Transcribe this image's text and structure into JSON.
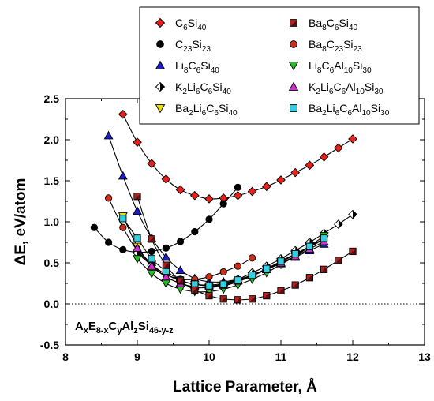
{
  "chart_data": {
    "type": "scatter",
    "xlabel": "Lattice Parameter, Å",
    "ylabel": "ΔE, eV/atom",
    "xlim": [
      8,
      13
    ],
    "ylim": [
      -0.5,
      2.5
    ],
    "xticks": [
      "8",
      "9",
      "10",
      "11",
      "12",
      "13"
    ],
    "yticks": [
      "-0.5",
      "0.0",
      "0.5",
      "1.0",
      "1.5",
      "2.0",
      "2.5"
    ],
    "grid": false,
    "legend_position": "top-right",
    "zero_line": "dotted",
    "formula": {
      "parts": [
        {
          "t": "A",
          "s": "n"
        },
        {
          "t": "x",
          "s": "sub"
        },
        {
          "t": "E",
          "s": "n"
        },
        {
          "t": "8-x",
          "s": "sub"
        },
        {
          "t": "C",
          "s": "n"
        },
        {
          "t": "y",
          "s": "sub"
        },
        {
          "t": "Al",
          "s": "n"
        },
        {
          "t": "z",
          "s": "sub"
        },
        {
          "t": "Si",
          "s": "n"
        },
        {
          "t": "46-y-z",
          "s": "sub"
        }
      ]
    },
    "series": [
      {
        "name": [
          {
            "t": "C",
            "s": "n"
          },
          {
            "t": "6",
            "s": "sub"
          },
          {
            "t": "Si",
            "s": "n"
          },
          {
            "t": "40",
            "s": "sub"
          }
        ],
        "marker": "diamond",
        "fill": "#e8201a",
        "fill2": null,
        "x": [
          8.8,
          9.0,
          9.2,
          9.4,
          9.6,
          9.8,
          10.0,
          10.2,
          10.4,
          10.6,
          10.8,
          11.0,
          11.2,
          11.4,
          11.6,
          11.8,
          12.0
        ],
        "y": [
          2.31,
          1.97,
          1.71,
          1.52,
          1.39,
          1.32,
          1.28,
          1.29,
          1.32,
          1.37,
          1.43,
          1.51,
          1.6,
          1.69,
          1.79,
          1.9,
          2.01
        ]
      },
      {
        "name": [
          {
            "t": "C",
            "s": "n"
          },
          {
            "t": "23",
            "s": "sub"
          },
          {
            "t": "Si",
            "s": "n"
          },
          {
            "t": "23",
            "s": "sub"
          }
        ],
        "marker": "circle",
        "fill": "#000000",
        "fill2": null,
        "x": [
          8.4,
          8.6,
          8.8,
          9.0,
          9.2,
          9.4,
          9.6,
          9.8,
          10.0,
          10.2,
          10.4
        ],
        "y": [
          0.93,
          0.75,
          0.66,
          0.63,
          0.64,
          0.68,
          0.76,
          0.88,
          1.03,
          1.22,
          1.42
        ]
      },
      {
        "name": [
          {
            "t": "Li",
            "s": "n"
          },
          {
            "t": "8",
            "s": "sub"
          },
          {
            "t": "C",
            "s": "n"
          },
          {
            "t": "6",
            "s": "sub"
          },
          {
            "t": "Si",
            "s": "n"
          },
          {
            "t": "40",
            "s": "sub"
          }
        ],
        "marker": "triangle-up",
        "fill": "#1c1cc8",
        "fill2": null,
        "x": [
          8.6,
          8.8,
          9.0,
          9.2,
          9.4,
          9.6,
          9.8,
          10.0,
          10.2,
          10.4,
          10.6,
          10.8,
          11.0,
          11.2,
          11.4,
          11.6
        ],
        "y": [
          2.05,
          1.56,
          1.13,
          0.8,
          0.57,
          0.41,
          0.31,
          0.27,
          0.27,
          0.3,
          0.35,
          0.42,
          0.49,
          0.57,
          0.65,
          0.73
        ]
      },
      {
        "name": [
          {
            "t": "K",
            "s": "n"
          },
          {
            "t": "2",
            "s": "sub"
          },
          {
            "t": "Li",
            "s": "n"
          },
          {
            "t": "6",
            "s": "sub"
          },
          {
            "t": "C",
            "s": "n"
          },
          {
            "t": "6",
            "s": "sub"
          },
          {
            "t": "Si",
            "s": "n"
          },
          {
            "t": "40",
            "s": "sub"
          }
        ],
        "marker": "diamond-half",
        "fill": "#ffffff",
        "fill2": "#000000",
        "x": [
          9.0,
          9.2,
          9.4,
          9.6,
          9.8,
          10.0,
          10.2,
          10.4,
          10.6,
          10.8,
          11.0,
          11.2,
          11.4,
          11.6,
          11.8,
          12.0
        ],
        "y": [
          0.62,
          0.47,
          0.36,
          0.28,
          0.24,
          0.23,
          0.25,
          0.3,
          0.38,
          0.46,
          0.55,
          0.65,
          0.75,
          0.86,
          0.97,
          1.09
        ]
      },
      {
        "name": [
          {
            "t": "Ba",
            "s": "n"
          },
          {
            "t": "2",
            "s": "sub"
          },
          {
            "t": "Li",
            "s": "n"
          },
          {
            "t": "6",
            "s": "sub"
          },
          {
            "t": "C",
            "s": "n"
          },
          {
            "t": "6",
            "s": "sub"
          },
          {
            "t": "Si",
            "s": "n"
          },
          {
            "t": "40",
            "s": "sub"
          }
        ],
        "marker": "triangle-down",
        "fill": "#e8e000",
        "fill2": null,
        "x": [
          8.8,
          9.0,
          9.2,
          9.4,
          9.6,
          9.8,
          10.0,
          10.2,
          10.4,
          10.6,
          10.8,
          11.0,
          11.2,
          11.4,
          11.6
        ],
        "y": [
          1.07,
          0.7,
          0.48,
          0.33,
          0.25,
          0.2,
          0.2,
          0.22,
          0.27,
          0.34,
          0.42,
          0.51,
          0.6,
          0.69,
          0.79
        ]
      },
      {
        "name": [
          {
            "t": "Ba",
            "s": "n"
          },
          {
            "t": "8",
            "s": "sub"
          },
          {
            "t": "C",
            "s": "n"
          },
          {
            "t": "6",
            "s": "sub"
          },
          {
            "t": "Si",
            "s": "n"
          },
          {
            "t": "40",
            "s": "sub"
          }
        ],
        "marker": "square-half",
        "fill": "#b22020",
        "fill2": "#5a1010",
        "x": [
          9.0,
          9.2,
          9.4,
          9.6,
          9.8,
          10.0,
          10.2,
          10.4,
          10.6,
          10.8,
          11.0,
          11.2,
          11.4,
          11.6,
          11.8,
          12.0
        ],
        "y": [
          1.31,
          0.79,
          0.47,
          0.28,
          0.17,
          0.1,
          0.06,
          0.05,
          0.06,
          0.1,
          0.16,
          0.23,
          0.32,
          0.42,
          0.53,
          0.64
        ]
      },
      {
        "name": [
          {
            "t": "Ba",
            "s": "n"
          },
          {
            "t": "8",
            "s": "sub"
          },
          {
            "t": "C",
            "s": "n"
          },
          {
            "t": "23",
            "s": "sub"
          },
          {
            "t": "Si",
            "s": "n"
          },
          {
            "t": "23",
            "s": "sub"
          }
        ],
        "marker": "circle",
        "fill": "#c8301a",
        "fill2": null,
        "x": [
          8.6,
          8.8,
          9.0,
          9.2,
          9.4,
          9.6,
          9.8,
          10.0,
          10.2,
          10.4,
          10.6
        ],
        "y": [
          1.29,
          0.93,
          0.65,
          0.48,
          0.36,
          0.3,
          0.3,
          0.33,
          0.39,
          0.46,
          0.56
        ]
      },
      {
        "name": [
          {
            "t": "Li",
            "s": "n"
          },
          {
            "t": "8",
            "s": "sub"
          },
          {
            "t": "C",
            "s": "n"
          },
          {
            "t": "6",
            "s": "sub"
          },
          {
            "t": "Al",
            "s": "n"
          },
          {
            "t": "10",
            "s": "sub"
          },
          {
            "t": "Si",
            "s": "n"
          },
          {
            "t": "30",
            "s": "sub"
          }
        ],
        "marker": "triangle-down",
        "fill": "#22c022",
        "fill2": null,
        "x": [
          9.0,
          9.2,
          9.4,
          9.6,
          9.8,
          10.0,
          10.2,
          10.4,
          10.6,
          10.8,
          11.0,
          11.2,
          11.4,
          11.6
        ],
        "y": [
          0.55,
          0.37,
          0.25,
          0.18,
          0.15,
          0.15,
          0.18,
          0.23,
          0.3,
          0.38,
          0.48,
          0.58,
          0.7,
          0.83
        ]
      },
      {
        "name": [
          {
            "t": "K",
            "s": "n"
          },
          {
            "t": "2",
            "s": "sub"
          },
          {
            "t": "Li",
            "s": "n"
          },
          {
            "t": "6",
            "s": "sub"
          },
          {
            "t": "C",
            "s": "n"
          },
          {
            "t": "6",
            "s": "sub"
          },
          {
            "t": "Al",
            "s": "n"
          },
          {
            "t": "10",
            "s": "sub"
          },
          {
            "t": "Si",
            "s": "n"
          },
          {
            "t": "30",
            "s": "sub"
          }
        ],
        "marker": "triangle-up",
        "fill": "#d030d0",
        "fill2": null,
        "x": [
          9.0,
          9.2,
          9.4,
          9.6,
          9.8,
          10.0,
          10.2,
          10.4,
          10.6,
          10.8,
          11.0,
          11.2,
          11.4,
          11.6
        ],
        "y": [
          0.68,
          0.46,
          0.33,
          0.25,
          0.21,
          0.21,
          0.23,
          0.28,
          0.35,
          0.42,
          0.5,
          0.58,
          0.67,
          0.76
        ]
      },
      {
        "name": [
          {
            "t": "Ba",
            "s": "n"
          },
          {
            "t": "2",
            "s": "sub"
          },
          {
            "t": "Li",
            "s": "n"
          },
          {
            "t": "6",
            "s": "sub"
          },
          {
            "t": "C",
            "s": "n"
          },
          {
            "t": "6",
            "s": "sub"
          },
          {
            "t": "Al",
            "s": "n"
          },
          {
            "t": "10",
            "s": "sub"
          },
          {
            "t": "Si",
            "s": "n"
          },
          {
            "t": "30",
            "s": "sub"
          }
        ],
        "marker": "square",
        "fill": "#30d0e0",
        "fill2": null,
        "x": [
          8.8,
          9.0,
          9.2,
          9.4,
          9.6,
          9.8,
          10.0,
          10.2,
          10.4,
          10.6,
          10.8,
          11.0,
          11.2,
          11.4,
          11.6
        ],
        "y": [
          1.04,
          0.8,
          0.55,
          0.4,
          0.29,
          0.24,
          0.22,
          0.24,
          0.29,
          0.35,
          0.43,
          0.52,
          0.61,
          0.7,
          0.8
        ]
      }
    ]
  }
}
